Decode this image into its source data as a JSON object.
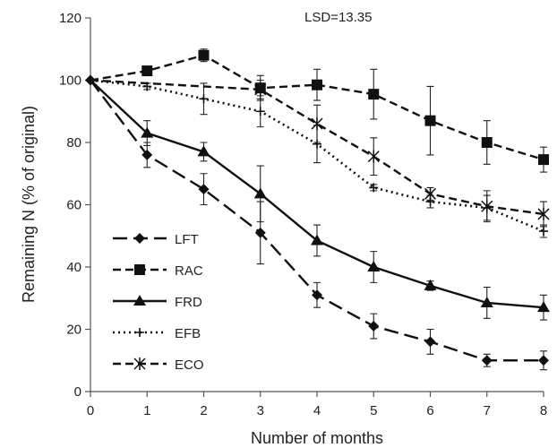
{
  "chart_data": {
    "type": "line",
    "annotation": "LSD=13.35",
    "xlabel": "Number of months",
    "ylabel": "Remaining N (% of original)",
    "x": [
      0,
      1,
      2,
      3,
      4,
      5,
      6,
      7,
      8
    ],
    "xlim": [
      0,
      8
    ],
    "ylim": [
      0,
      120
    ],
    "yticks": [
      0,
      20,
      40,
      60,
      80,
      100,
      120
    ],
    "grid": false,
    "legend": "bottom-left",
    "series": [
      {
        "name": "LFT",
        "marker": "diamond",
        "dash": "long-dash",
        "values": [
          100,
          76,
          65,
          51,
          31,
          21,
          16,
          10,
          10
        ],
        "err": [
          0,
          4,
          5,
          10,
          4,
          4,
          4,
          2,
          3
        ]
      },
      {
        "name": "RAC",
        "marker": "square",
        "dash": "dash",
        "values": [
          100,
          103,
          108,
          97.5,
          98.5,
          95.5,
          87,
          80,
          74.5
        ],
        "err": [
          0,
          1,
          2,
          4,
          5,
          8,
          11,
          7,
          4
        ]
      },
      {
        "name": "FRD",
        "marker": "triangle",
        "dash": "solid",
        "values": [
          100,
          83,
          77,
          63.5,
          48.5,
          40,
          34,
          28.5,
          27
        ],
        "err": [
          0,
          4,
          3,
          9,
          5,
          5,
          1.5,
          5,
          4
        ]
      },
      {
        "name": "EFB",
        "marker": "plus",
        "dash": "dot",
        "values": [
          100,
          98,
          94,
          90,
          79.5,
          65.5,
          61,
          59,
          51.5
        ],
        "err": [
          0,
          1,
          5,
          5,
          6,
          1,
          2,
          4,
          2
        ]
      },
      {
        "name": "ECO",
        "marker": "asterisk",
        "dash": "dash",
        "values": [
          100,
          null,
          null,
          97,
          86,
          75.5,
          63.5,
          59.5,
          57
        ],
        "err": [
          0,
          0,
          0,
          3,
          6,
          6,
          2,
          5,
          4
        ]
      }
    ]
  }
}
